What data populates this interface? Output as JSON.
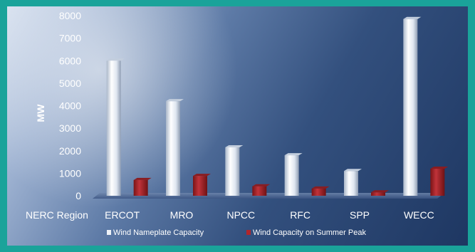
{
  "chart_data": {
    "type": "bar",
    "title": "",
    "xlabel": "NERC Region",
    "ylabel": "MW",
    "ylim": [
      0,
      8000
    ],
    "yticks": [
      "0",
      "1000",
      "2000",
      "3000",
      "4000",
      "5000",
      "6000",
      "7000",
      "8000"
    ],
    "categories": [
      "ERCOT",
      "MRO",
      "NPCC",
      "RFC",
      "SPP",
      "WECC"
    ],
    "series": [
      {
        "name": "Wind Nameplate Capacity",
        "values": [
          6000,
          4200,
          2150,
          1800,
          1100,
          7850
        ],
        "color": "#e6ecf4"
      },
      {
        "name": "Wind Capacity on Summer Peak",
        "values": [
          700,
          880,
          420,
          320,
          150,
          1200
        ],
        "color": "#a4252a"
      }
    ],
    "grid": false,
    "legend": "bottom"
  }
}
